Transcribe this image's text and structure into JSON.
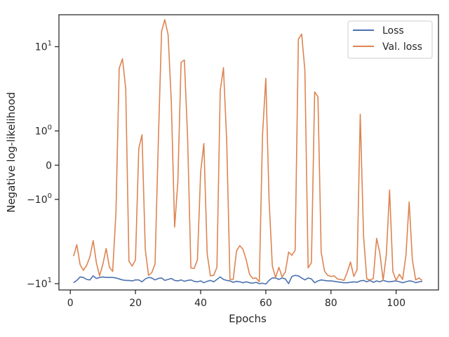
{
  "chart_data": {
    "type": "line",
    "xlabel": "Epochs",
    "ylabel": "Negative log-likelihood",
    "x_ticks": [
      0,
      20,
      40,
      60,
      80,
      100
    ],
    "y_ticks": [
      {
        "value": 10,
        "label_base": "10",
        "label_exp": "1"
      },
      {
        "value": 1,
        "label_base": "10",
        "label_exp": "0"
      },
      {
        "value": 0,
        "label_base": "0",
        "label_exp": ""
      },
      {
        "value": -1,
        "label_base": "−10",
        "label_exp": "0"
      },
      {
        "value": -10,
        "label_base": "−10",
        "label_exp": "1"
      }
    ],
    "xlim": [
      -3.5,
      113
    ],
    "y_scale": "symlog",
    "ylim": [
      -11.5,
      20
    ],
    "grid": false,
    "legend_position": "top-right",
    "colors": {
      "loss": "#4c72b0",
      "val_loss": "#dd8452",
      "axis": "#262626"
    },
    "series": [
      {
        "name": "Loss",
        "x": [
          1,
          2,
          3,
          4,
          5,
          6,
          7,
          8,
          9,
          10,
          11,
          12,
          13,
          14,
          15,
          16,
          17,
          18,
          19,
          20,
          21,
          22,
          23,
          24,
          25,
          26,
          27,
          28,
          29,
          30,
          31,
          32,
          33,
          34,
          35,
          36,
          37,
          38,
          39,
          40,
          41,
          42,
          43,
          44,
          45,
          46,
          47,
          48,
          49,
          50,
          51,
          52,
          53,
          54,
          55,
          56,
          57,
          58,
          59,
          60,
          61,
          62,
          63,
          64,
          65,
          66,
          67,
          68,
          69,
          70,
          71,
          72,
          73,
          74,
          75,
          76,
          77,
          78,
          79,
          80,
          81,
          82,
          83,
          84,
          85,
          86,
          87,
          88,
          89,
          90,
          91,
          92,
          93,
          94,
          95,
          96,
          97,
          98,
          99,
          100,
          101,
          102,
          103,
          104,
          105,
          106,
          107,
          108
        ],
        "values": [
          -9.8,
          -9.3,
          -8.6,
          -8.7,
          -9.1,
          -9.2,
          -8.4,
          -8.9,
          -8.7,
          -8.6,
          -8.7,
          -8.7,
          -8.7,
          -8.8,
          -9.0,
          -9.2,
          -9.3,
          -9.3,
          -9.4,
          -9.2,
          -9.2,
          -9.6,
          -9.0,
          -8.7,
          -8.8,
          -9.2,
          -8.9,
          -8.8,
          -9.3,
          -9.1,
          -8.9,
          -9.3,
          -9.4,
          -9.2,
          -9.5,
          -9.3,
          -9.2,
          -9.5,
          -9.6,
          -9.4,
          -9.8,
          -9.5,
          -9.3,
          -9.6,
          -9.1,
          -8.6,
          -9.1,
          -9.3,
          -9.4,
          -9.7,
          -9.5,
          -9.6,
          -9.8,
          -9.6,
          -9.8,
          -9.9,
          -9.7,
          -10.0,
          -9.9,
          -10.1,
          -9.3,
          -8.8,
          -8.8,
          -9.1,
          -8.8,
          -9.0,
          -10.0,
          -8.5,
          -8.3,
          -8.4,
          -8.8,
          -9.2,
          -8.8,
          -9.0,
          -9.8,
          -9.4,
          -9.2,
          -9.3,
          -9.4,
          -9.4,
          -9.5,
          -9.6,
          -9.7,
          -9.8,
          -9.8,
          -9.7,
          -9.6,
          -9.7,
          -9.4,
          -9.3,
          -9.6,
          -9.3,
          -9.7,
          -9.4,
          -9.6,
          -9.3,
          -9.5,
          -9.6,
          -9.5,
          -9.4,
          -9.6,
          -9.8,
          -9.6,
          -9.4,
          -9.5,
          -9.8,
          -9.6,
          -9.5
        ]
      },
      {
        "name": "Val. loss",
        "x": [
          1,
          2,
          3,
          4,
          5,
          6,
          7,
          8,
          9,
          10,
          11,
          12,
          13,
          14,
          15,
          16,
          17,
          18,
          19,
          20,
          21,
          22,
          23,
          24,
          25,
          26,
          27,
          28,
          29,
          30,
          31,
          32,
          33,
          34,
          35,
          36,
          37,
          38,
          39,
          40,
          41,
          42,
          43,
          44,
          45,
          46,
          47,
          48,
          49,
          50,
          51,
          52,
          53,
          54,
          55,
          56,
          57,
          58,
          59,
          60,
          61,
          62,
          63,
          64,
          65,
          66,
          67,
          68,
          69,
          70,
          71,
          72,
          73,
          74,
          75,
          76,
          77,
          78,
          79,
          80,
          81,
          82,
          83,
          84,
          85,
          86,
          87,
          88,
          89,
          90,
          91,
          92,
          93,
          94,
          95,
          96,
          97,
          98,
          99,
          100,
          101,
          102,
          103,
          104,
          105,
          106,
          107,
          108
        ],
        "values": [
          -5.3,
          -4.0,
          -6.5,
          -7.4,
          -6.6,
          -5.4,
          -3.6,
          -6.2,
          -8.4,
          -6.4,
          -4.4,
          -6.9,
          -7.6,
          -1.6,
          6.1,
          7.6,
          3.7,
          -6.0,
          -6.7,
          -5.8,
          0.4,
          0.85,
          -4.5,
          -8.3,
          -7.8,
          -6.4,
          0.55,
          14.0,
          18.0,
          13.0,
          2.6,
          -2.5,
          -0.4,
          7.0,
          7.4,
          0.75,
          -7.0,
          -7.1,
          -5.8,
          -0.15,
          0.55,
          -5.0,
          -8.4,
          -8.3,
          -6.9,
          3.5,
          6.2,
          0.6,
          -9.1,
          -9.1,
          -4.7,
          -4.1,
          -4.5,
          -5.8,
          -8.1,
          -8.9,
          -8.8,
          -9.6,
          0.85,
          4.8,
          -1.0,
          -6.7,
          -8.7,
          -6.9,
          -8.6,
          -7.7,
          -4.8,
          -5.2,
          -4.6,
          11.8,
          13.2,
          5.8,
          -7.0,
          -6.2,
          3.4,
          3.0,
          -4.8,
          -7.5,
          -8.3,
          -8.5,
          -8.4,
          -9.0,
          -9.1,
          -9.3,
          -7.7,
          -6.1,
          -8.5,
          -7.3,
          1.8,
          -3.2,
          -9.0,
          -9.2,
          -8.9,
          -3.4,
          -4.9,
          -9.3,
          -5.1,
          -0.65,
          -7.6,
          -9.3,
          -8.1,
          -9.1,
          -5.2,
          -1.1,
          -5.8,
          -9.2,
          -8.8,
          -9.3
        ]
      }
    ]
  }
}
